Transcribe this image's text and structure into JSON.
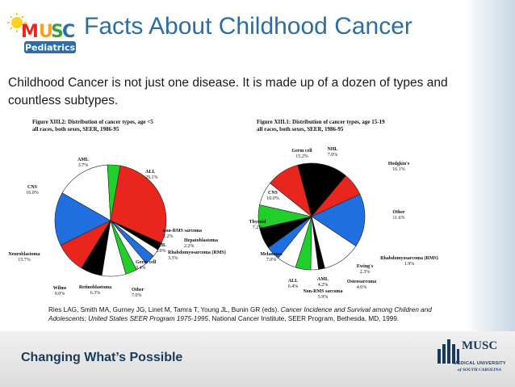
{
  "slide": {
    "title": "Facts About Childhood Cancer",
    "body": "Childhood Cancer is not just one disease.  It is made up of a dozen of types and countless subtypes.",
    "logo": {
      "musc": "MUSC",
      "sub": "Pediatrics"
    },
    "citation_plain1": "Ries LAG, Smith MA, Gurney JG, Linet M, Tamra T, Young JL, Bunin GR (eds). ",
    "citation_italic": "Cancer Incidence and Survival among Children and Adolescents: United States SEER Program 1975-1995",
    "citation_plain2": ", National Cancer Institute, SEER Program, Bethesda, MD, 1999.",
    "footer": {
      "tagline": "Changing What’s Possible",
      "brand": "MUSC",
      "brand_sub1": "MEDICAL UNIVERSITY",
      "brand_sub2": "of SOUTH CAROLINA"
    }
  },
  "chart_data": [
    {
      "type": "pie",
      "title": "Figure XIII.2: Distribution of cancer types, age <5",
      "subtitle": "all races, both sexes, SEER, 1986-95",
      "slices": [
        {
          "label": "ALL",
          "value": 29.1,
          "text": "29.1%",
          "color": "#e8261d"
        },
        {
          "label": "non-RMS sarcoma",
          "value": 2.2,
          "text": "2.2%",
          "color": "#000000"
        },
        {
          "label": "Hepatoblastoma",
          "value": 2.2,
          "text": "2.2%",
          "color": "#ffffff"
        },
        {
          "label": "NHL",
          "value": 3.0,
          "text": "3.0%",
          "color": "#1f6fe0"
        },
        {
          "label": "Rhabdomyosarcoma (RMS)",
          "value": 3.3,
          "text": "3.3%",
          "color": "#ffffff"
        },
        {
          "label": "Germ cell",
          "value": 3.4,
          "text": "3.4%",
          "color": "#21cf2b"
        },
        {
          "label": "Other",
          "value": 7.0,
          "text": "7.0%",
          "color": "#ffffff"
        },
        {
          "label": "Retinoblastoma",
          "value": 6.3,
          "text": "6.3%",
          "color": "#000000"
        },
        {
          "label": "Wilms",
          "value": 9.0,
          "text": "9.0%",
          "color": "#e8261d"
        },
        {
          "label": "Neuroblastoma",
          "value": 15.7,
          "text": "15.7%",
          "color": "#1f6fe0"
        },
        {
          "label": "CNS",
          "value": 16.0,
          "text": "16.0%",
          "color": "#ffffff"
        },
        {
          "label": "AML",
          "value": 3.7,
          "text": "3.7%",
          "color": "#21cf2b"
        }
      ]
    },
    {
      "type": "pie",
      "title": "Figure XIII.1: Distribution of cancer types, age 15-19",
      "subtitle": "all races, both sexes, SEER, 1986-95",
      "slices": [
        {
          "label": "NHL",
          "value": 7.0,
          "text": "7.0%",
          "color": "#e8261d"
        },
        {
          "label": "Hodgkin's",
          "value": 16.1,
          "text": "16.1%",
          "color": "#1f6fe0"
        },
        {
          "label": "Other",
          "value": 11.6,
          "text": "11.6%",
          "color": "#ffffff"
        },
        {
          "label": "Rhabdomyosarcoma (RMS)",
          "value": 1.9,
          "text": "1.9%",
          "color": "#000000"
        },
        {
          "label": "Ewing's",
          "value": 2.3,
          "text": "2.3%",
          "color": "#ffffff"
        },
        {
          "label": "Osteosarcoma",
          "value": 4.6,
          "text": "4.6%",
          "color": "#21cf2b"
        },
        {
          "label": "Non-RMS sarcoma",
          "value": 5.9,
          "text": "5.9%",
          "color": "#ffffff"
        },
        {
          "label": "AML",
          "value": 4.2,
          "text": "4.2%",
          "color": "#1f6fe0"
        },
        {
          "label": "ALL",
          "value": 6.4,
          "text": "6.4%",
          "color": "#000000"
        },
        {
          "label": "Melanoma",
          "value": 7.0,
          "text": "7.0%",
          "color": "#21cf2b"
        },
        {
          "label": "Thyroid",
          "value": 7.2,
          "text": "7.2%",
          "color": "#ffffff"
        },
        {
          "label": "CNS",
          "value": 10.0,
          "text": "10.0%",
          "color": "#e8261d"
        },
        {
          "label": "Germ cell",
          "value": 15.2,
          "text": "15.2%",
          "color": "#000000"
        }
      ]
    }
  ]
}
